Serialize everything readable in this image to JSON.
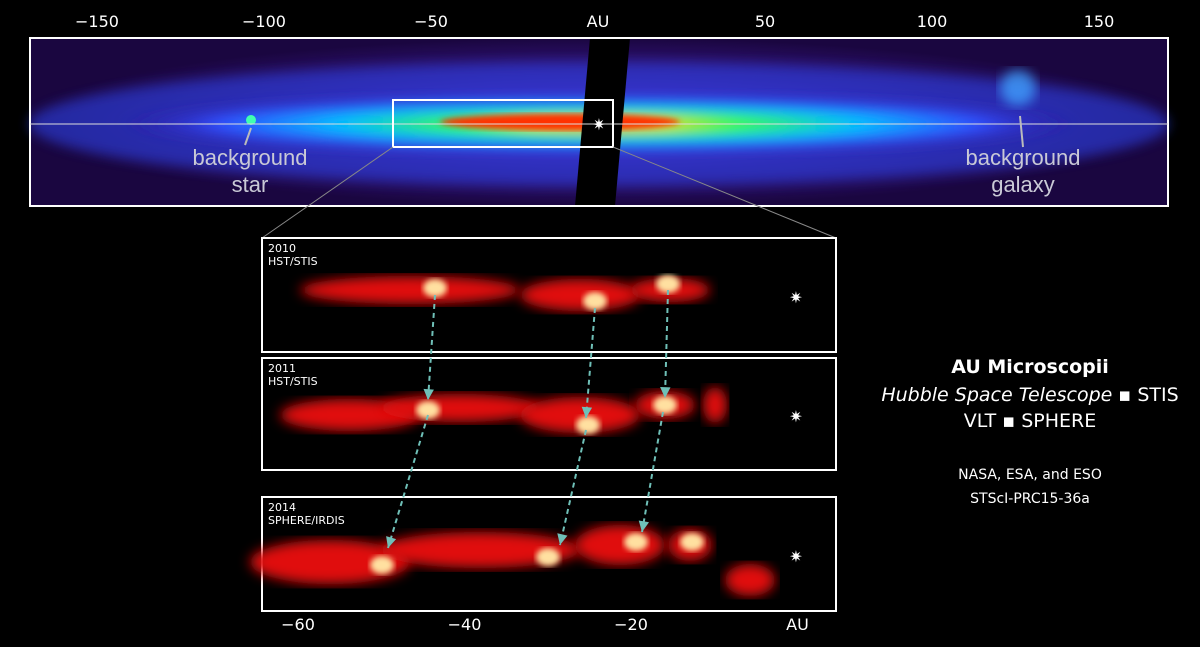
{
  "top_axis": {
    "ticks": [
      "−150",
      "−100",
      "−50",
      "AU",
      "50",
      "100",
      "150"
    ]
  },
  "annotations": {
    "background_star": [
      "background",
      "star"
    ],
    "background_galaxy": [
      "background",
      "galaxy"
    ]
  },
  "panels": [
    {
      "year": "2010",
      "instrument": "HST/STIS"
    },
    {
      "year": "2011",
      "instrument": "HST/STIS"
    },
    {
      "year": "2014",
      "instrument": "SPHERE/IRDIS"
    }
  ],
  "bottom_axis": {
    "ticks": [
      "−60",
      "−40",
      "−20",
      "AU"
    ]
  },
  "caption": {
    "title": "AU Microscopii",
    "line2_italic": "Hubble Space Telescope",
    "line2_rest": "▪ STIS",
    "line3": "VLT ▪ SPHERE",
    "credit": "NASA, ESA, and ESO",
    "id": "STScI-PRC15-36a"
  }
}
